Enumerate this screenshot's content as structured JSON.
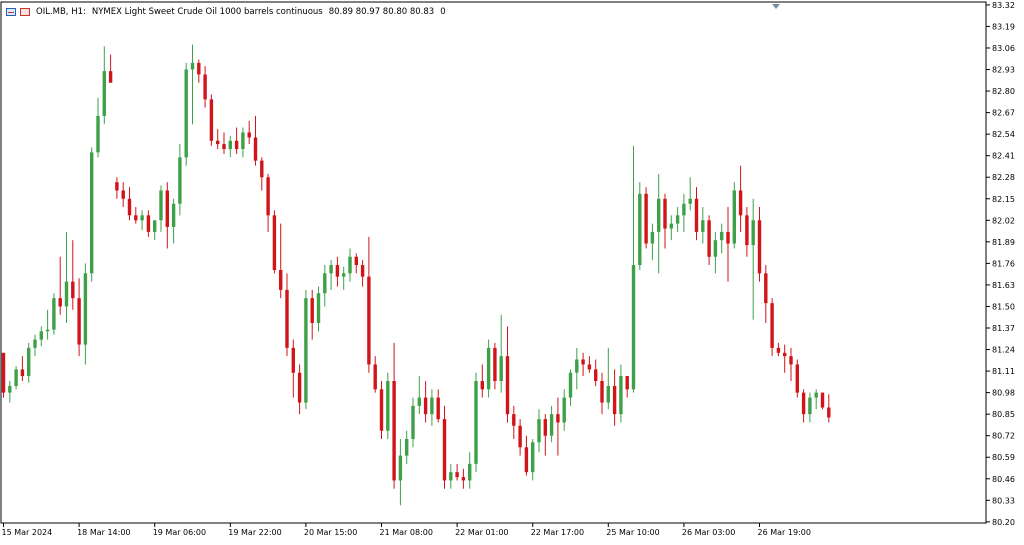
{
  "header": {
    "symbol": "OIL.MB, H1:",
    "description": "NYMEX Light Sweet Crude Oil 1000 barrels continuous",
    "ohlc": "80.89 80.97 80.80 80.83",
    "volume": "0"
  },
  "colors": {
    "bull": "#3fa04a",
    "bear": "#d0141a",
    "axis": "#000000",
    "background": "#ffffff"
  },
  "chart_data": {
    "type": "candlestick",
    "y_ticks": [
      83.32,
      83.19,
      83.06,
      82.93,
      82.8,
      82.67,
      82.54,
      82.41,
      82.28,
      82.15,
      82.02,
      81.89,
      81.76,
      81.63,
      81.5,
      81.37,
      81.24,
      81.11,
      80.98,
      80.85,
      80.72,
      80.59,
      80.46,
      80.33,
      80.2
    ],
    "ylim": [
      80.1,
      83.32
    ],
    "x_labels": [
      {
        "index": 0,
        "label": "15 Mar 2024"
      },
      {
        "index": 12,
        "label": "18 Mar 14:00"
      },
      {
        "index": 24,
        "label": "19 Mar 06:00"
      },
      {
        "index": 36,
        "label": "19 Mar 22:00"
      },
      {
        "index": 48,
        "label": "20 Mar 15:00"
      },
      {
        "index": 60,
        "label": "21 Mar 08:00"
      },
      {
        "index": 72,
        "label": "22 Mar 01:00"
      },
      {
        "index": 84,
        "label": "22 Mar 17:00"
      },
      {
        "index": 96,
        "label": "25 Mar 10:00"
      },
      {
        "index": 108,
        "label": "26 Mar 03:00"
      },
      {
        "index": 120,
        "label": "26 Mar 19:00"
      }
    ],
    "candles": [
      [
        81.22,
        81.22,
        80.95,
        80.98
      ],
      [
        80.98,
        81.05,
        80.92,
        81.02
      ],
      [
        81.02,
        81.14,
        81.0,
        81.12
      ],
      [
        81.12,
        81.2,
        81.05,
        81.08
      ],
      [
        81.08,
        81.28,
        81.04,
        81.25
      ],
      [
        81.25,
        81.33,
        81.2,
        81.3
      ],
      [
        81.3,
        81.38,
        81.26,
        81.35
      ],
      [
        81.35,
        81.48,
        81.3,
        81.36
      ],
      [
        81.36,
        81.58,
        81.33,
        81.55
      ],
      [
        81.55,
        81.8,
        81.45,
        81.5
      ],
      [
        81.5,
        81.95,
        81.4,
        81.65
      ],
      [
        81.65,
        81.9,
        81.48,
        81.55
      ],
      [
        81.55,
        81.67,
        81.2,
        81.27
      ],
      [
        81.27,
        81.76,
        81.15,
        81.7
      ],
      [
        81.7,
        82.46,
        81.65,
        82.43
      ],
      [
        82.43,
        82.76,
        82.4,
        82.65
      ],
      [
        82.65,
        83.07,
        82.6,
        82.92
      ],
      [
        82.92,
        83.02,
        82.85,
        82.85
      ],
      [
        82.25,
        82.28,
        82.15,
        82.2
      ],
      [
        82.2,
        82.25,
        82.1,
        82.15
      ],
      [
        82.15,
        82.22,
        82.02,
        82.05
      ],
      [
        82.05,
        82.1,
        82.0,
        82.02
      ],
      [
        82.02,
        82.08,
        81.96,
        82.05
      ],
      [
        82.05,
        82.08,
        81.92,
        81.95
      ],
      [
        81.95,
        82.0,
        81.9,
        82.02
      ],
      [
        82.02,
        82.23,
        81.95,
        82.2
      ],
      [
        82.2,
        82.25,
        81.85,
        81.98
      ],
      [
        81.98,
        82.15,
        81.88,
        82.12
      ],
      [
        82.12,
        82.48,
        82.05,
        82.4
      ],
      [
        82.4,
        82.97,
        82.35,
        82.93
      ],
      [
        82.93,
        83.08,
        82.6,
        82.97
      ],
      [
        82.97,
        82.99,
        82.85,
        82.9
      ],
      [
        82.9,
        82.95,
        82.7,
        82.75
      ],
      [
        82.75,
        82.78,
        82.47,
        82.5
      ],
      [
        82.5,
        82.57,
        82.45,
        82.48
      ],
      [
        82.48,
        82.55,
        82.42,
        82.45
      ],
      [
        82.45,
        82.53,
        82.4,
        82.5
      ],
      [
        82.5,
        82.58,
        82.42,
        82.45
      ],
      [
        82.45,
        82.58,
        82.4,
        82.55
      ],
      [
        82.55,
        82.62,
        82.48,
        82.52
      ],
      [
        82.52,
        82.65,
        82.35,
        82.38
      ],
      [
        82.38,
        82.4,
        82.2,
        82.28
      ],
      [
        82.28,
        82.3,
        81.95,
        82.05
      ],
      [
        82.05,
        82.08,
        81.7,
        81.72
      ],
      [
        81.72,
        82.0,
        81.55,
        81.6
      ],
      [
        81.6,
        81.7,
        81.2,
        81.25
      ],
      [
        81.25,
        81.3,
        80.95,
        81.1
      ],
      [
        81.1,
        81.15,
        80.85,
        80.92
      ],
      [
        80.92,
        81.6,
        80.88,
        81.55
      ],
      [
        81.55,
        81.6,
        81.3,
        81.4
      ],
      [
        81.4,
        81.62,
        81.35,
        81.58
      ],
      [
        81.58,
        81.75,
        81.5,
        81.7
      ],
      [
        81.7,
        81.78,
        81.6,
        81.75
      ],
      [
        81.75,
        81.8,
        81.62,
        81.68
      ],
      [
        81.68,
        81.74,
        81.6,
        81.7
      ],
      [
        81.7,
        81.85,
        81.65,
        81.8
      ],
      [
        81.8,
        81.82,
        81.7,
        81.75
      ],
      [
        81.75,
        81.78,
        81.62,
        81.68
      ],
      [
        81.68,
        81.92,
        81.1,
        81.15
      ],
      [
        81.15,
        81.2,
        80.98,
        81.0
      ],
      [
        81.0,
        81.05,
        80.7,
        80.75
      ],
      [
        80.75,
        81.1,
        80.7,
        81.05
      ],
      [
        81.05,
        81.28,
        80.4,
        80.45
      ],
      [
        80.45,
        80.7,
        80.3,
        80.6
      ],
      [
        80.6,
        80.75,
        80.55,
        80.7
      ],
      [
        80.7,
        80.95,
        80.65,
        80.9
      ],
      [
        80.9,
        81.08,
        80.85,
        80.95
      ],
      [
        80.95,
        81.05,
        80.8,
        80.85
      ],
      [
        80.85,
        81.0,
        80.78,
        80.95
      ],
      [
        80.95,
        81.0,
        80.8,
        80.82
      ],
      [
        80.82,
        80.9,
        80.4,
        80.45
      ],
      [
        80.45,
        80.55,
        80.4,
        80.5
      ],
      [
        80.5,
        80.55,
        80.45,
        80.47
      ],
      [
        80.47,
        80.52,
        80.4,
        80.45
      ],
      [
        80.45,
        80.62,
        80.4,
        80.55
      ],
      [
        80.55,
        81.1,
        80.5,
        81.05
      ],
      [
        81.05,
        81.15,
        80.95,
        81.0
      ],
      [
        81.0,
        81.3,
        80.95,
        81.25
      ],
      [
        81.25,
        81.28,
        81.0,
        81.05
      ],
      [
        81.05,
        81.45,
        80.98,
        81.2
      ],
      [
        81.2,
        81.38,
        80.8,
        80.85
      ],
      [
        80.85,
        80.9,
        80.7,
        80.78
      ],
      [
        80.78,
        80.82,
        80.6,
        80.65
      ],
      [
        80.65,
        80.72,
        80.48,
        80.5
      ],
      [
        80.5,
        80.7,
        80.45,
        80.68
      ],
      [
        80.68,
        80.88,
        80.62,
        80.82
      ],
      [
        80.82,
        80.85,
        80.6,
        80.72
      ],
      [
        80.72,
        80.9,
        80.68,
        80.85
      ],
      [
        80.85,
        80.95,
        80.6,
        80.8
      ],
      [
        80.8,
        81.0,
        80.75,
        80.95
      ],
      [
        80.95,
        81.12,
        80.9,
        81.1
      ],
      [
        81.1,
        81.25,
        81.0,
        81.18
      ],
      [
        81.18,
        81.22,
        81.08,
        81.15
      ],
      [
        81.15,
        81.2,
        81.1,
        81.12
      ],
      [
        81.12,
        81.18,
        81.02,
        81.05
      ],
      [
        81.05,
        81.1,
        80.85,
        80.92
      ],
      [
        80.92,
        81.25,
        80.88,
        81.02
      ],
      [
        81.02,
        81.12,
        80.78,
        80.85
      ],
      [
        80.85,
        81.15,
        80.8,
        81.08
      ],
      [
        81.08,
        81.08,
        80.95,
        81.0
      ],
      [
        81.0,
        82.47,
        80.98,
        81.75
      ],
      [
        81.75,
        82.25,
        81.72,
        82.18
      ],
      [
        82.18,
        82.22,
        81.85,
        81.88
      ],
      [
        81.88,
        82.0,
        81.78,
        81.95
      ],
      [
        81.95,
        82.3,
        81.7,
        82.15
      ],
      [
        82.15,
        82.18,
        81.85,
        81.97
      ],
      [
        81.97,
        82.05,
        81.9,
        82.0
      ],
      [
        82.0,
        82.1,
        81.95,
        82.05
      ],
      [
        82.05,
        82.18,
        81.95,
        82.12
      ],
      [
        82.12,
        82.28,
        82.08,
        82.15
      ],
      [
        82.15,
        82.22,
        81.9,
        81.95
      ],
      [
        81.95,
        82.1,
        81.88,
        82.02
      ],
      [
        82.02,
        82.05,
        81.75,
        81.8
      ],
      [
        81.8,
        81.95,
        81.7,
        81.9
      ],
      [
        81.9,
        82.0,
        81.82,
        81.95
      ],
      [
        81.95,
        82.1,
        81.65,
        81.88
      ],
      [
        81.88,
        82.25,
        81.85,
        82.2
      ],
      [
        82.2,
        82.35,
        81.95,
        82.05
      ],
      [
        82.05,
        82.1,
        81.8,
        81.87
      ],
      [
        81.87,
        82.15,
        81.42,
        82.02
      ],
      [
        82.02,
        82.1,
        81.65,
        81.7
      ],
      [
        81.7,
        81.75,
        81.4,
        81.52
      ],
      [
        81.52,
        81.55,
        81.2,
        81.25
      ],
      [
        81.25,
        81.28,
        81.2,
        81.22
      ],
      [
        81.22,
        81.27,
        81.1,
        81.2
      ],
      [
        81.2,
        81.25,
        81.05,
        81.15
      ],
      [
        81.15,
        81.18,
        80.95,
        80.98
      ],
      [
        80.98,
        81.0,
        80.8,
        80.85
      ],
      [
        80.85,
        80.98,
        80.8,
        80.95
      ],
      [
        80.95,
        81.0,
        80.88,
        80.98
      ],
      [
        80.98,
        80.98,
        80.88,
        80.89
      ],
      [
        80.89,
        80.97,
        80.8,
        80.83
      ]
    ]
  }
}
